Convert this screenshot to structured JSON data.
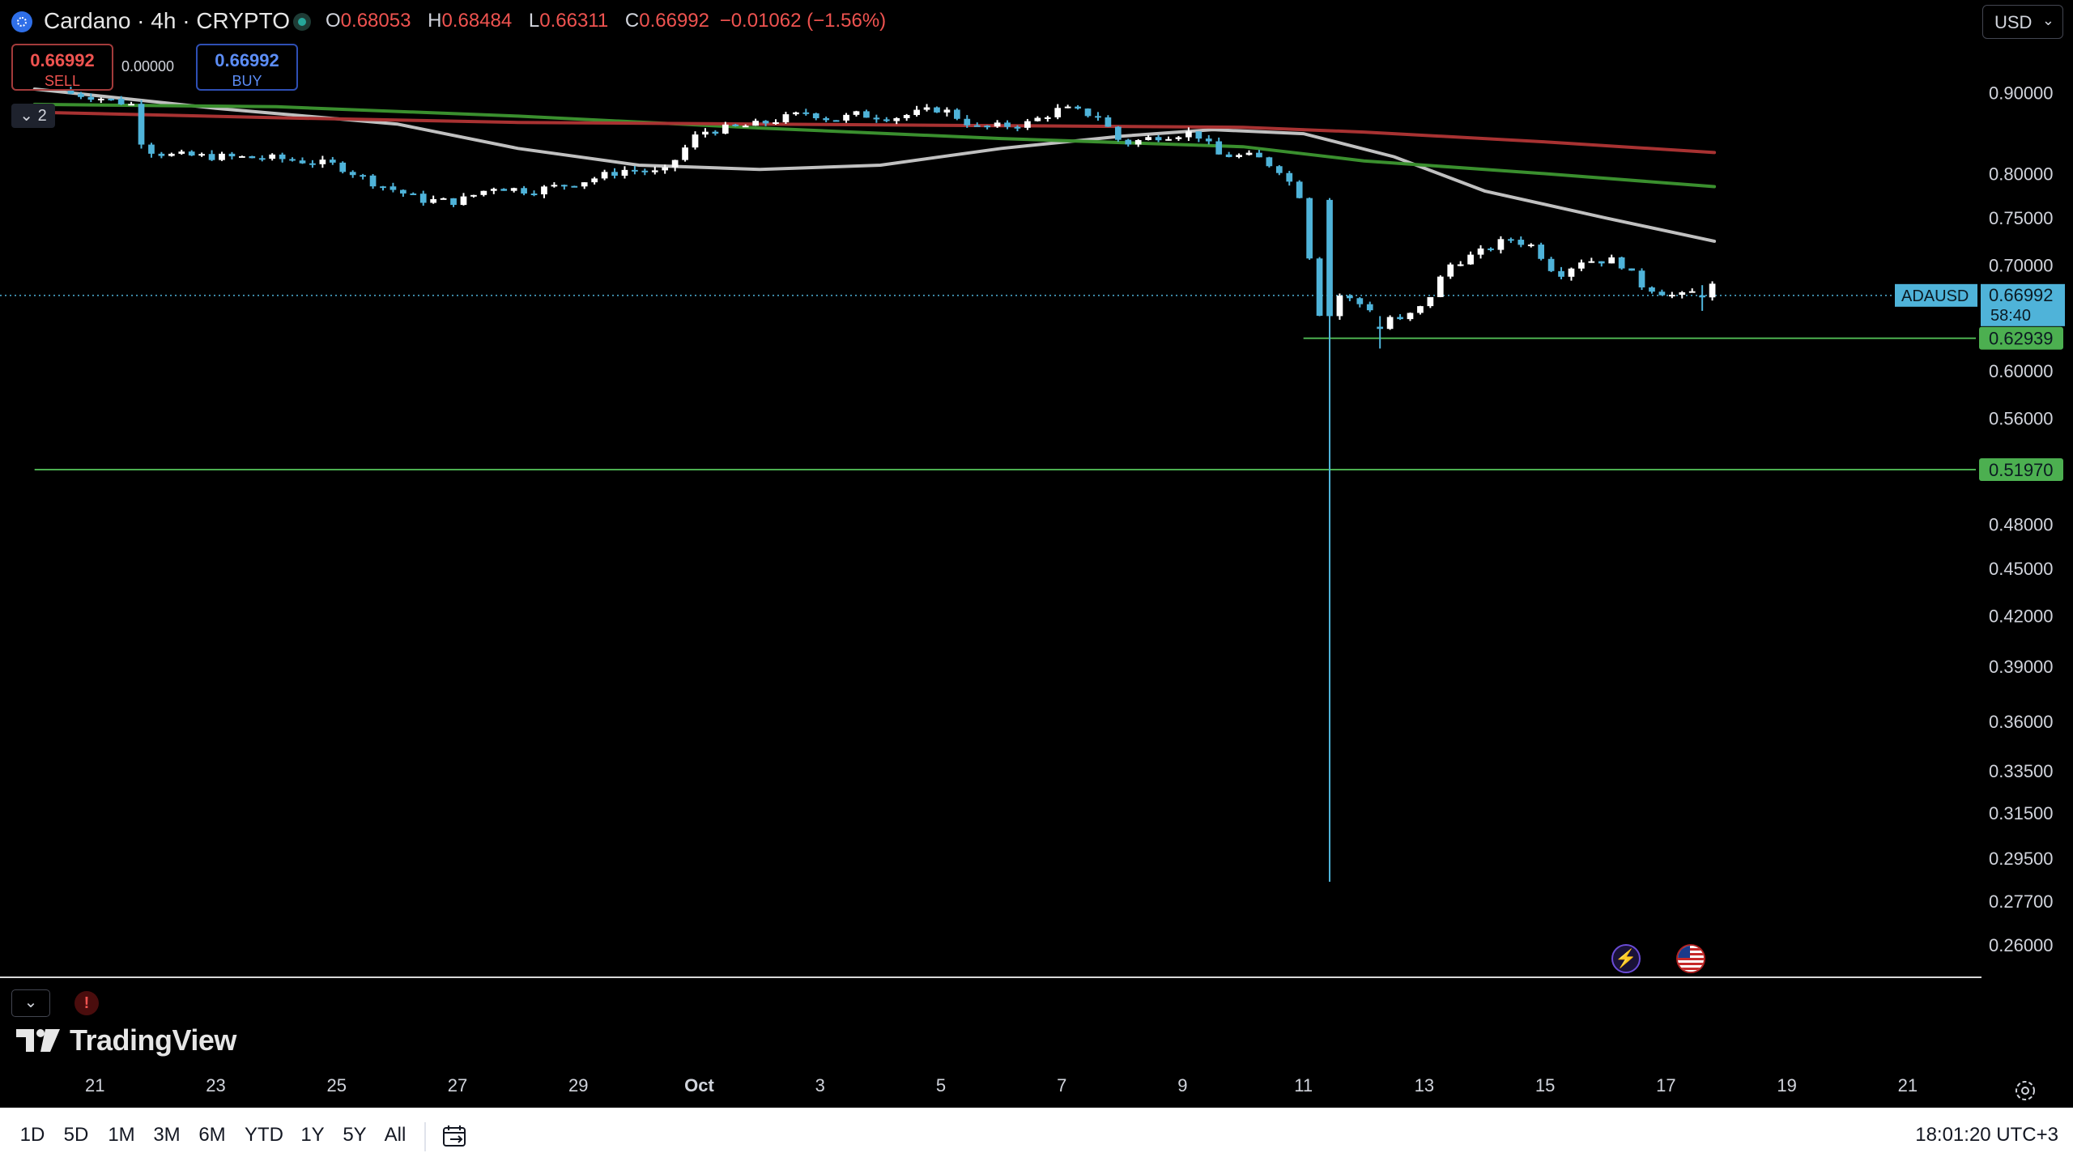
{
  "header": {
    "symbol_title": "Cardano · 4h · CRYPTO",
    "ohlc": {
      "o_label": "O",
      "o": "0.68053",
      "h_label": "H",
      "h": "0.68484",
      "l_label": "L",
      "l": "0.66311",
      "c_label": "C",
      "c": "0.66992",
      "change": "−0.01062 (−1.56%)"
    },
    "currency": "USD"
  },
  "trade": {
    "sell_price": "0.66992",
    "sell_label": "SELL",
    "spread": "0.00000",
    "buy_price": "0.66992",
    "buy_label": "BUY"
  },
  "indicators_badge": "2",
  "brand": "TradingView",
  "footer": {
    "ranges": [
      "1D",
      "5D",
      "1M",
      "3M",
      "6M",
      "YTD",
      "1Y",
      "5Y",
      "All"
    ],
    "clock": "18:01:20 UTC+3"
  },
  "colors": {
    "up": "#ffffff",
    "down": "#4fb3d9",
    "ma_fast": "#c0c0c0",
    "ma_mid": "#3a8f2e",
    "ma_slow": "#a83232",
    "level_line": "#4caf50",
    "price_line": "#4fb3d9"
  },
  "chart_data": {
    "type": "candlestick",
    "symbol": "ADAUSD",
    "interval": "4h",
    "scale": "log",
    "ylim": [
      0.25,
      0.96
    ],
    "y_ticks": [
      "0.90000",
      "0.80000",
      "0.75000",
      "0.70000",
      "0.60000",
      "0.56000",
      "0.48000",
      "0.45000",
      "0.42000",
      "0.39000",
      "0.36000",
      "0.33500",
      "0.31500",
      "0.29500",
      "0.27700",
      "0.26000"
    ],
    "x_ticks": [
      {
        "label": "21",
        "day": -11
      },
      {
        "label": "23",
        "day": -9
      },
      {
        "label": "25",
        "day": -7
      },
      {
        "label": "27",
        "day": -5
      },
      {
        "label": "29",
        "day": -3
      },
      {
        "label": "Oct",
        "day": -1
      },
      {
        "label": "3",
        "day": 1
      },
      {
        "label": "5",
        "day": 3
      },
      {
        "label": "7",
        "day": 5
      },
      {
        "label": "9",
        "day": 7
      },
      {
        "label": "11",
        "day": 9
      },
      {
        "label": "13",
        "day": 11
      },
      {
        "label": "15",
        "day": 13
      },
      {
        "label": "17",
        "day": 15
      },
      {
        "label": "19",
        "day": 17
      },
      {
        "label": "21",
        "day": 19
      }
    ],
    "x_range": [
      -11.5,
      21.2
    ],
    "current_price": {
      "symbol": "ADAUSD",
      "value": "0.66992",
      "countdown": "58:40"
    },
    "levels": [
      {
        "value": "0.62939",
        "from_day": 9
      },
      {
        "value": "0.51970",
        "from_day": -12
      }
    ],
    "close_anchors": [
      [
        -12,
        0.905
      ],
      [
        -11.0,
        0.895
      ],
      [
        -10.4,
        0.885
      ],
      [
        -10.2,
        0.83
      ],
      [
        -9.8,
        0.822
      ],
      [
        -9.0,
        0.82
      ],
      [
        -8.0,
        0.818
      ],
      [
        -7.6,
        0.815
      ],
      [
        -7.0,
        0.81
      ],
      [
        -6.4,
        0.79
      ],
      [
        -5.6,
        0.77
      ],
      [
        -5.0,
        0.768
      ],
      [
        -4.4,
        0.785
      ],
      [
        -3.8,
        0.78
      ],
      [
        -3.0,
        0.79
      ],
      [
        -2.2,
        0.805
      ],
      [
        -1.6,
        0.8
      ],
      [
        -1.0,
        0.85
      ],
      [
        0.0,
        0.86
      ],
      [
        0.8,
        0.875
      ],
      [
        1.2,
        0.865
      ],
      [
        1.6,
        0.872
      ],
      [
        2.2,
        0.868
      ],
      [
        3.0,
        0.88
      ],
      [
        3.6,
        0.855
      ],
      [
        4.4,
        0.86
      ],
      [
        5.0,
        0.88
      ],
      [
        5.6,
        0.87
      ],
      [
        6.0,
        0.835
      ],
      [
        6.6,
        0.845
      ],
      [
        7.2,
        0.85
      ],
      [
        7.6,
        0.822
      ],
      [
        8.2,
        0.82
      ],
      [
        8.6,
        0.805
      ],
      [
        9.0,
        0.77
      ],
      [
        9.2,
        0.65
      ],
      [
        9.6,
        0.67
      ],
      [
        10.0,
        0.66
      ],
      [
        10.6,
        0.645
      ],
      [
        11.0,
        0.66
      ],
      [
        11.4,
        0.7
      ],
      [
        12.0,
        0.715
      ],
      [
        12.4,
        0.728
      ],
      [
        12.8,
        0.72
      ],
      [
        13.2,
        0.69
      ],
      [
        13.6,
        0.705
      ],
      [
        14.2,
        0.705
      ],
      [
        14.6,
        0.68
      ],
      [
        15.2,
        0.668
      ],
      [
        15.8,
        0.68
      ]
    ],
    "wick_events": [
      {
        "day": 9.4,
        "open": 0.77,
        "high": 0.772,
        "low": 0.285,
        "close": 0.65
      },
      {
        "day": 10.2,
        "open": 0.64,
        "high": 0.65,
        "low": 0.62,
        "close": 0.638
      },
      {
        "day": 15.6,
        "open": 0.67,
        "high": 0.68,
        "low": 0.655,
        "close": 0.668
      }
    ],
    "moving_averages": [
      {
        "color_key": "ma_fast",
        "points": [
          [
            -12,
            0.905
          ],
          [
            -9,
            0.88
          ],
          [
            -6,
            0.86
          ],
          [
            -4,
            0.83
          ],
          [
            -2,
            0.81
          ],
          [
            0,
            0.805
          ],
          [
            2,
            0.81
          ],
          [
            4,
            0.83
          ],
          [
            6,
            0.845
          ],
          [
            7.5,
            0.853
          ],
          [
            9,
            0.848
          ],
          [
            10.5,
            0.82
          ],
          [
            12,
            0.78
          ],
          [
            14,
            0.75
          ],
          [
            15.8,
            0.725
          ]
        ]
      },
      {
        "color_key": "ma_mid",
        "points": [
          [
            -12,
            0.885
          ],
          [
            -8,
            0.882
          ],
          [
            -4,
            0.87
          ],
          [
            0,
            0.855
          ],
          [
            4,
            0.842
          ],
          [
            8,
            0.832
          ],
          [
            10,
            0.815
          ],
          [
            13,
            0.8
          ],
          [
            15.8,
            0.785
          ]
        ]
      },
      {
        "color_key": "ma_slow",
        "points": [
          [
            -12,
            0.875
          ],
          [
            -8,
            0.868
          ],
          [
            -4,
            0.862
          ],
          [
            0,
            0.86
          ],
          [
            4,
            0.858
          ],
          [
            8,
            0.856
          ],
          [
            10,
            0.85
          ],
          [
            13,
            0.838
          ],
          [
            15.8,
            0.825
          ]
        ]
      }
    ]
  }
}
